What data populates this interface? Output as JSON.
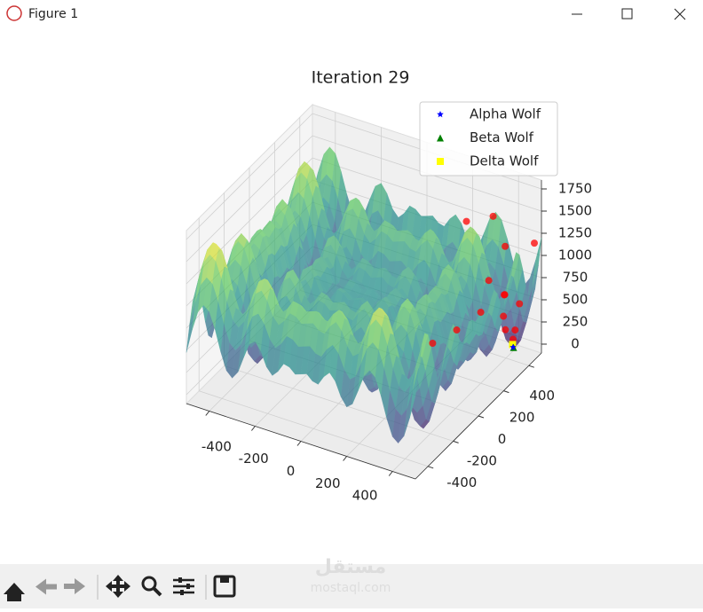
{
  "window": {
    "title": "Figure 1"
  },
  "watermark": {
    "text": "مستقل",
    "url": "mostaql.com"
  },
  "chart_data": {
    "type": "scatter3d",
    "title": "Iteration 29",
    "xlim": [
      -500,
      500
    ],
    "ylim": [
      -500,
      500
    ],
    "zlim": [
      -100,
      1850
    ],
    "xticks": [
      -400,
      -200,
      0,
      200,
      400
    ],
    "yticks": [
      -400,
      -200,
      0,
      200,
      400
    ],
    "zticks": [
      0,
      250,
      500,
      750,
      1000,
      1250,
      1500,
      1750
    ],
    "grid": true,
    "legend": "upper right",
    "series": [
      {
        "name": "Alpha Wolf",
        "color": "#0000ff",
        "marker": "star",
        "x": [
          420
        ],
        "y": [
          420
        ],
        "z": [
          10
        ]
      },
      {
        "name": "Beta Wolf",
        "color": "#008000",
        "marker": "triangle",
        "x": [
          425
        ],
        "y": [
          415
        ],
        "z": [
          20
        ]
      },
      {
        "name": "Delta Wolf",
        "color": "#ffff00",
        "marker": "square",
        "x": [
          415
        ],
        "y": [
          425
        ],
        "z": [
          30
        ]
      },
      {
        "color": "#ff0000",
        "marker": "circle",
        "x": [
          200,
          300,
          380,
          480,
          450,
          420,
          470,
          400,
          350,
          300,
          420,
          440,
          400,
          480,
          380
        ],
        "y": [
          450,
          480,
          430,
          480,
          300,
          350,
          380,
          200,
          100,
          0,
          420,
          400,
          380,
          250,
          300
        ],
        "z": [
          1200,
          1300,
          1100,
          1150,
          800,
          700,
          600,
          700,
          600,
          550,
          100,
          250,
          400,
          500,
          900
        ]
      }
    ]
  }
}
